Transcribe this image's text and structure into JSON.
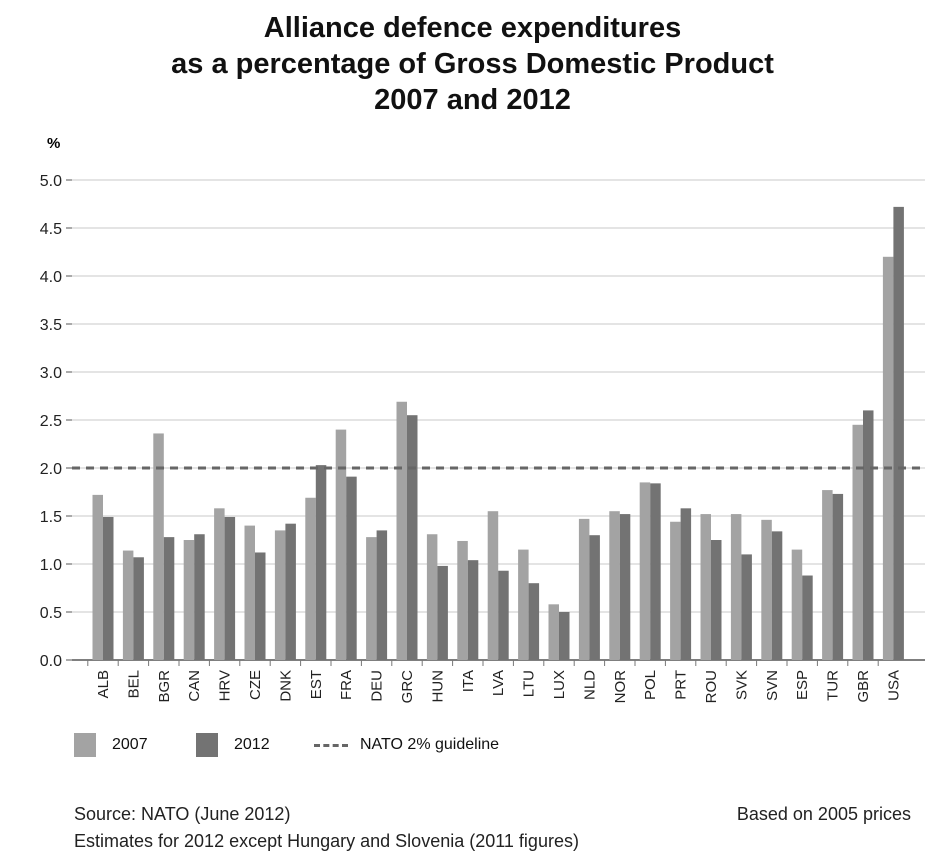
{
  "chart": {
    "title_lines": [
      "Alliance defence expenditures",
      "as a percentage of Gross Domestic Product",
      "2007 and 2012"
    ],
    "colors": {
      "s2007": "#a3a3a3",
      "s2012": "#737373",
      "guideline": "#666666",
      "grid": "#c8c8c8"
    }
  },
  "legend": {
    "s2007": "2007",
    "s2012": "2012",
    "guideline": "NATO 2% guideline"
  },
  "footer": {
    "source": "Source: NATO (June 2012)",
    "note": "Estimates for 2012 except Hungary and Slovenia (2011 figures)",
    "prices": "Based on 2005 prices"
  },
  "chart_data": {
    "type": "bar",
    "title": "Alliance defence expenditures as a percentage of Gross Domestic Product 2007 and 2012",
    "ylabel": "%",
    "xlabel": "",
    "ylim": [
      0,
      5
    ],
    "yticks": [
      "0.0",
      "0.5",
      "1.0",
      "1.5",
      "2.0",
      "2.5",
      "3.0",
      "3.5",
      "4.0",
      "4.5",
      "5.0"
    ],
    "grid": true,
    "legend_position": "bottom",
    "reference_line": {
      "value": 2.0,
      "name": "NATO 2% guideline"
    },
    "categories": [
      "ALB",
      "BEL",
      "BGR",
      "CAN",
      "HRV",
      "CZE",
      "DNK",
      "EST",
      "FRA",
      "DEU",
      "GRC",
      "HUN",
      "ITA",
      "LVA",
      "LTU",
      "LUX",
      "NLD",
      "NOR",
      "POL",
      "PRT",
      "ROU",
      "SVK",
      "SVN",
      "ESP",
      "TUR",
      "GBR",
      "USA"
    ],
    "series": [
      {
        "name": "2007",
        "values": [
          1.72,
          1.14,
          2.36,
          1.25,
          1.58,
          1.4,
          1.35,
          1.69,
          2.4,
          1.28,
          2.69,
          1.31,
          1.24,
          1.55,
          1.15,
          0.58,
          1.47,
          1.55,
          1.85,
          1.44,
          1.52,
          1.52,
          1.46,
          1.15,
          1.77,
          2.45,
          4.2
        ]
      },
      {
        "name": "2012",
        "values": [
          1.49,
          1.07,
          1.28,
          1.31,
          1.49,
          1.12,
          1.42,
          2.03,
          1.91,
          1.35,
          2.55,
          0.98,
          1.04,
          0.93,
          0.8,
          0.5,
          1.3,
          1.52,
          1.84,
          1.58,
          1.25,
          1.1,
          1.34,
          0.88,
          1.73,
          2.6,
          4.72
        ]
      }
    ]
  }
}
